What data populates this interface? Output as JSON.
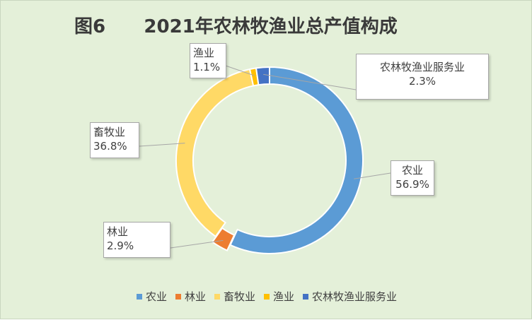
{
  "chart_data": {
    "type": "pie",
    "variant": "doughnut",
    "title": "图6      2021年农林牧渔业总产值构成",
    "categories": [
      "农业",
      "林业",
      "畜牧业",
      "渔业",
      "农林牧渔业服务业"
    ],
    "values": [
      56.9,
      2.9,
      36.8,
      1.1,
      2.3
    ],
    "value_labels": [
      "56.9%",
      "2.9%",
      "36.8%",
      "1.1%",
      "2.3%"
    ],
    "unit": "%",
    "colors": [
      "#5b9bd5",
      "#ed7d31",
      "#ffd966",
      "#ffc000",
      "#4472c4"
    ],
    "exploded": [
      "林业"
    ],
    "legend": "bottom",
    "background": "#e4f0d9"
  }
}
